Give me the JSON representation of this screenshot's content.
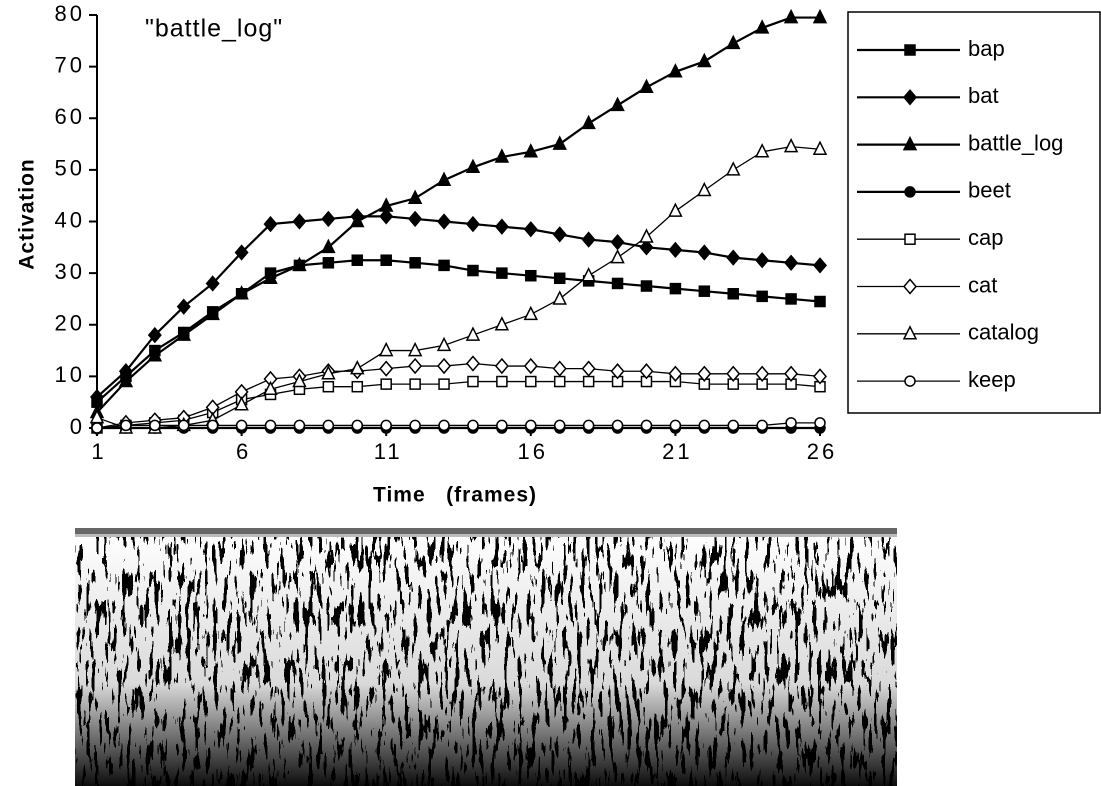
{
  "chart_data": {
    "type": "line",
    "title": "\"battle_log\"",
    "x_label": "Time   (frames)",
    "y_label": "Activation",
    "x": [
      1,
      2,
      3,
      4,
      5,
      6,
      7,
      8,
      9,
      10,
      11,
      12,
      13,
      14,
      15,
      16,
      17,
      18,
      19,
      20,
      21,
      22,
      23,
      24,
      25,
      26
    ],
    "xlim": [
      1,
      26
    ],
    "xticks": [
      1,
      6,
      11,
      16,
      21,
      26
    ],
    "ylim": [
      0,
      80
    ],
    "yticks": [
      0,
      10,
      20,
      30,
      40,
      50,
      60,
      70,
      80
    ],
    "legend": "right",
    "series": [
      {
        "name": "bap",
        "color": "#000000",
        "marker": "square",
        "marker_fill": "#000000",
        "values": [
          5,
          10,
          15,
          18.5,
          22.5,
          26,
          30,
          31.5,
          32,
          32.5,
          32.5,
          32,
          31.5,
          30.5,
          30,
          29.5,
          29,
          28.5,
          28,
          27.5,
          27,
          26.5,
          26,
          25.5,
          25,
          24.5
        ]
      },
      {
        "name": "bat",
        "color": "#000000",
        "marker": "diamond",
        "marker_fill": "#000000",
        "values": [
          6,
          11,
          18,
          23.5,
          28,
          34,
          39.5,
          40,
          40.5,
          41,
          41,
          40.5,
          40,
          39.5,
          39,
          38.5,
          37.5,
          36.5,
          36,
          35,
          34.5,
          34,
          33,
          32.5,
          32,
          31.5
        ]
      },
      {
        "name": "battle_log",
        "color": "#000000",
        "marker": "triangle",
        "marker_fill": "#000000",
        "values": [
          3,
          9,
          14,
          18,
          22,
          26,
          29,
          31.5,
          35,
          40,
          43,
          44.5,
          48,
          50.5,
          52.5,
          53.5,
          55,
          59,
          62.5,
          66,
          69,
          71,
          74.5,
          77.5,
          79.5,
          79.5
        ]
      },
      {
        "name": "beet",
        "color": "#000000",
        "marker": "circle",
        "marker_fill": "#000000",
        "values": [
          0,
          0,
          0,
          0,
          0,
          0,
          0,
          0,
          0,
          0,
          0,
          0,
          0,
          0,
          0,
          0,
          0,
          0,
          0,
          0,
          0,
          0,
          0,
          0,
          0,
          0
        ]
      },
      {
        "name": "cap",
        "color": "#000000",
        "marker": "square",
        "marker_fill": "#ffffff",
        "values": [
          0,
          0.5,
          1,
          1.5,
          3,
          5.5,
          6.5,
          7.5,
          8,
          8,
          8.5,
          8.5,
          8.5,
          9,
          9,
          9,
          9,
          9,
          9,
          9,
          9,
          8.5,
          8.5,
          8.5,
          8.5,
          8
        ]
      },
      {
        "name": "cat",
        "color": "#000000",
        "marker": "diamond",
        "marker_fill": "#ffffff",
        "values": [
          0,
          1,
          1.5,
          2,
          4,
          7,
          9.5,
          10,
          11,
          11,
          11.5,
          12,
          12,
          12.5,
          12,
          12,
          11.5,
          11.5,
          11,
          11,
          10.5,
          10.5,
          10.5,
          10.5,
          10.5,
          10
        ]
      },
      {
        "name": "catalog",
        "color": "#000000",
        "marker": "triangle",
        "marker_fill": "#ffffff",
        "values": [
          2,
          0,
          0,
          0.5,
          1.5,
          4.5,
          7.5,
          9,
          10.5,
          11.5,
          15,
          15,
          16,
          18,
          20,
          22,
          25,
          29.5,
          33,
          37,
          42,
          46,
          50,
          53.5,
          54.5,
          54
        ]
      },
      {
        "name": "keep",
        "color": "#000000",
        "marker": "circle",
        "marker_fill": "#ffffff",
        "values": [
          0,
          0.5,
          0.5,
          0.5,
          0.5,
          0.5,
          0.5,
          0.5,
          0.5,
          0.5,
          0.5,
          0.5,
          0.5,
          0.5,
          0.5,
          0.5,
          0.5,
          0.5,
          0.5,
          0.5,
          0.5,
          0.5,
          0.5,
          0.5,
          1,
          1
        ]
      }
    ]
  }
}
